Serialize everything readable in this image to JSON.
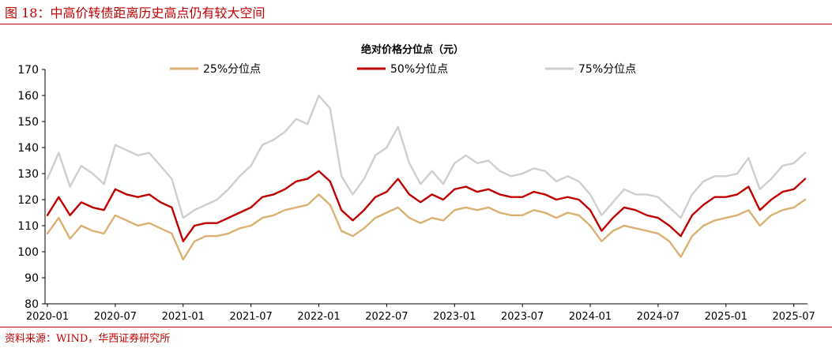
{
  "figure": {
    "title": "图 18：中高价转债距离历史高点仍有较大空间",
    "source": "资料来源：WIND，华西证券研究所"
  },
  "colors": {
    "accent": "#c00000",
    "p25": "#d9b172",
    "p50": "#c00000",
    "p75": "#cfcfcf"
  },
  "chart_data": {
    "type": "line",
    "title": "绝对价格分位点（元）",
    "xlabel": "",
    "ylabel": "",
    "ylim": [
      80,
      170
    ],
    "yticks": [
      80,
      90,
      100,
      110,
      120,
      130,
      140,
      150,
      160,
      170
    ],
    "xticks": [
      "2020-01",
      "2020-07",
      "2021-01",
      "2021-07",
      "2022-01",
      "2022-07",
      "2023-01",
      "2023-07",
      "2024-01",
      "2024-07",
      "2025-01",
      "2025-07"
    ],
    "grid": false,
    "legend": "top",
    "x": [
      "2020-01",
      "2020-02",
      "2020-03",
      "2020-04",
      "2020-05",
      "2020-06",
      "2020-07",
      "2020-08",
      "2020-09",
      "2020-10",
      "2020-11",
      "2020-12",
      "2021-01",
      "2021-02",
      "2021-03",
      "2021-04",
      "2021-05",
      "2021-06",
      "2021-07",
      "2021-08",
      "2021-09",
      "2021-10",
      "2021-11",
      "2021-12",
      "2022-01",
      "2022-02",
      "2022-03",
      "2022-04",
      "2022-05",
      "2022-06",
      "2022-07",
      "2022-08",
      "2022-09",
      "2022-10",
      "2022-11",
      "2022-12",
      "2023-01",
      "2023-02",
      "2023-03",
      "2023-04",
      "2023-05",
      "2023-06",
      "2023-07",
      "2023-08",
      "2023-09",
      "2023-10",
      "2023-11",
      "2023-12",
      "2024-01",
      "2024-02",
      "2024-03",
      "2024-04",
      "2024-05",
      "2024-06",
      "2024-07",
      "2024-08",
      "2024-09",
      "2024-10",
      "2024-11",
      "2024-12",
      "2025-01",
      "2025-02",
      "2025-03",
      "2025-04",
      "2025-05",
      "2025-06",
      "2025-07",
      "2025-08"
    ],
    "series": [
      {
        "name": "25%分位点",
        "color": "#d9b172",
        "values": [
          107,
          113,
          105,
          110,
          108,
          107,
          114,
          112,
          110,
          111,
          109,
          107,
          97,
          104,
          106,
          106,
          107,
          109,
          110,
          113,
          114,
          116,
          117,
          118,
          122,
          118,
          108,
          106,
          109,
          113,
          115,
          117,
          113,
          111,
          113,
          112,
          116,
          117,
          116,
          117,
          115,
          114,
          114,
          116,
          115,
          113,
          115,
          114,
          110,
          104,
          108,
          110,
          109,
          108,
          107,
          104,
          98,
          106,
          110,
          112,
          113,
          114,
          116,
          110,
          114,
          116,
          117,
          120
        ]
      },
      {
        "name": "50%分位点",
        "color": "#c00000",
        "values": [
          114,
          121,
          114,
          119,
          117,
          116,
          124,
          122,
          121,
          122,
          119,
          117,
          104,
          110,
          111,
          111,
          113,
          115,
          117,
          121,
          122,
          124,
          127,
          128,
          131,
          127,
          116,
          112,
          116,
          121,
          123,
          128,
          122,
          119,
          122,
          120,
          124,
          125,
          123,
          124,
          122,
          121,
          121,
          123,
          122,
          120,
          121,
          120,
          116,
          108,
          113,
          117,
          116,
          114,
          113,
          110,
          106,
          114,
          118,
          121,
          121,
          122,
          125,
          116,
          120,
          123,
          124,
          128
        ]
      },
      {
        "name": "75%分位点",
        "color": "#cfcfcf",
        "values": [
          128,
          138,
          125,
          133,
          130,
          126,
          141,
          139,
          137,
          138,
          133,
          128,
          113,
          116,
          118,
          120,
          124,
          129,
          133,
          141,
          143,
          146,
          151,
          149,
          160,
          155,
          129,
          122,
          128,
          137,
          140,
          148,
          134,
          126,
          131,
          126,
          134,
          137,
          134,
          135,
          131,
          129,
          130,
          132,
          131,
          127,
          129,
          127,
          122,
          114,
          119,
          124,
          122,
          122,
          121,
          117,
          113,
          122,
          127,
          129,
          129,
          130,
          136,
          124,
          128,
          133,
          134,
          138
        ]
      }
    ]
  }
}
